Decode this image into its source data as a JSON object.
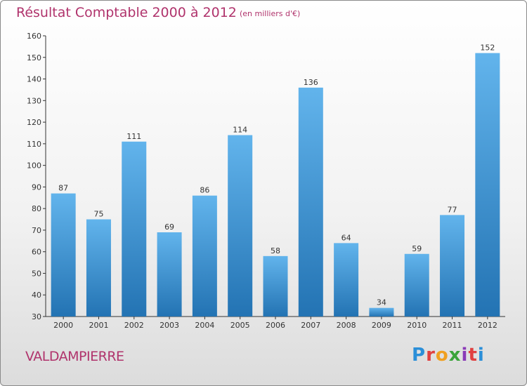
{
  "title": "Résultat Comptable 2000 à 2012",
  "unit": "(en milliers d'€)",
  "location": "VALDAMPIERRE",
  "logo_text": "Proxiti",
  "colors": {
    "title": "#b0336c",
    "bar_top": "#62b4ec",
    "bar_bottom": "#2373b3",
    "axis": "#333333"
  },
  "chart_data": {
    "type": "bar",
    "title": "Résultat Comptable 2000 à 2012",
    "subtitle": "(en milliers d'€)",
    "xlabel": "",
    "ylabel": "",
    "categories": [
      "2000",
      "2001",
      "2002",
      "2003",
      "2004",
      "2005",
      "2006",
      "2007",
      "2008",
      "2009",
      "2010",
      "2011",
      "2012"
    ],
    "values": [
      87,
      75,
      111,
      69,
      86,
      114,
      58,
      136,
      64,
      34,
      59,
      77,
      152
    ],
    "ylim": [
      30,
      160
    ],
    "yticks": [
      30,
      40,
      50,
      60,
      70,
      80,
      90,
      100,
      110,
      120,
      130,
      140,
      150,
      160
    ],
    "grid": false,
    "legend": "none"
  }
}
